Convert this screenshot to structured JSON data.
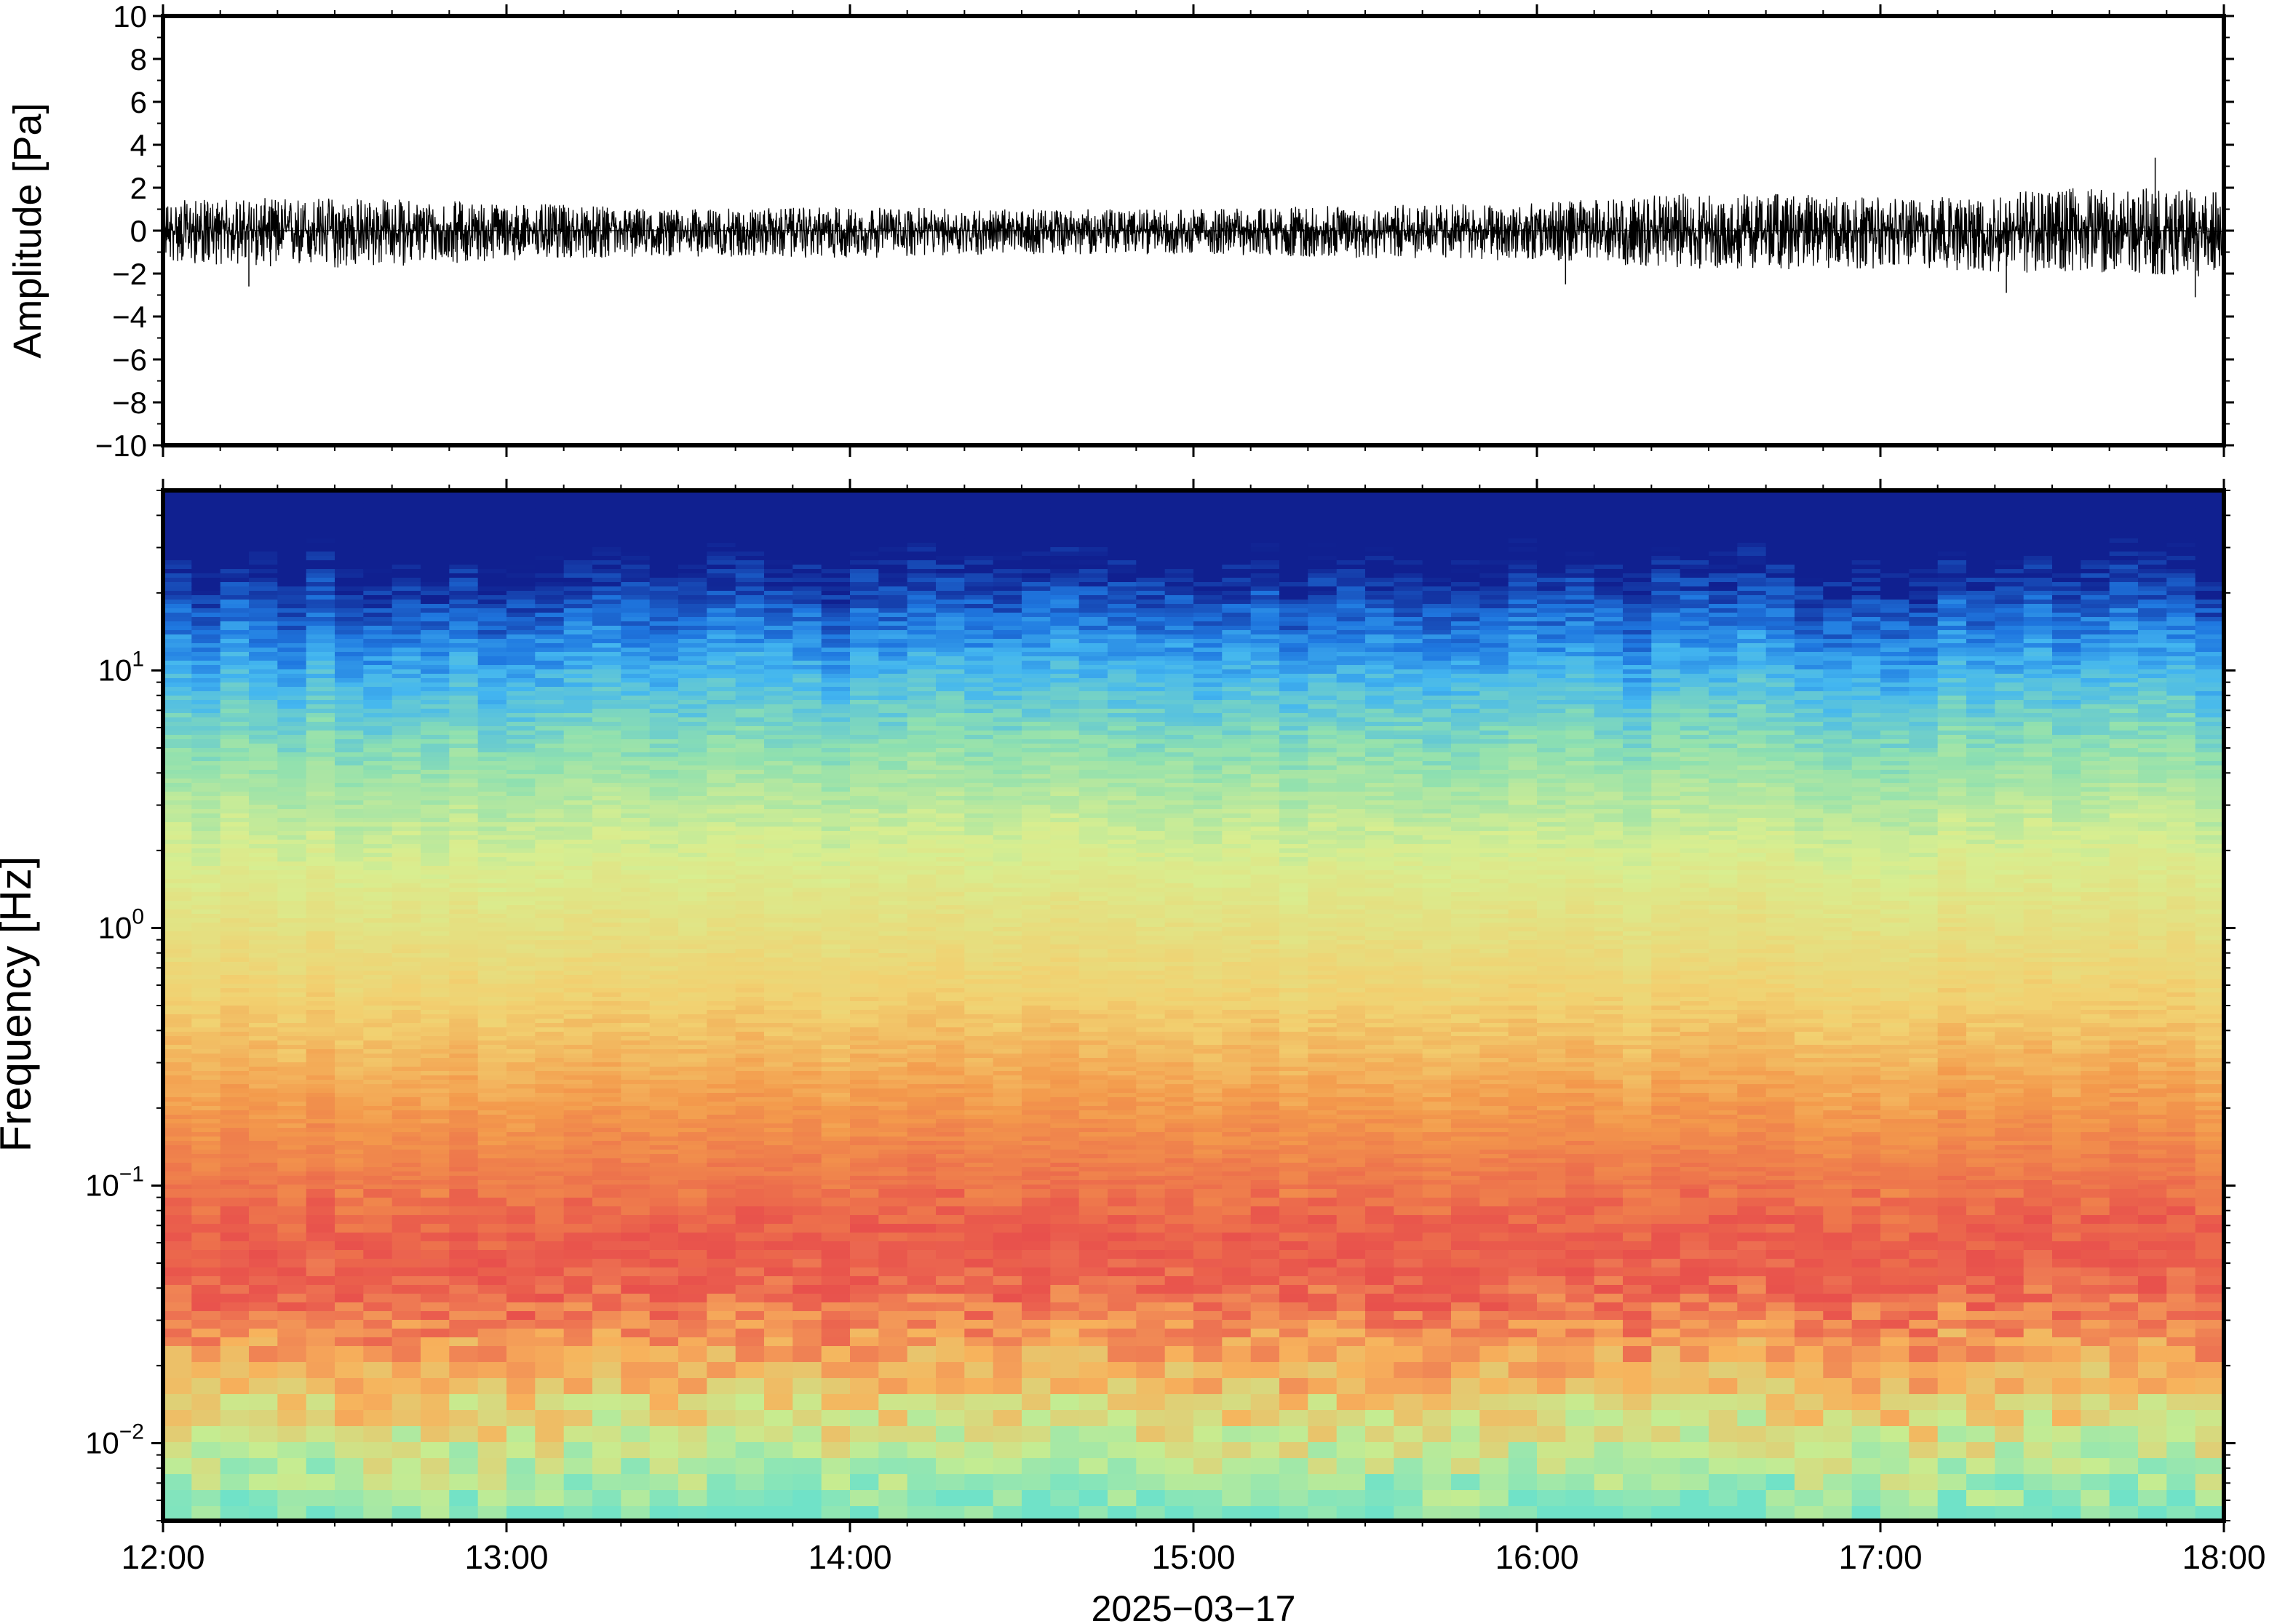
{
  "chart_data": [
    {
      "type": "line",
      "title": "",
      "xlabel": "",
      "ylabel": "Amplitude [Pa]",
      "xlim": [
        "12:00",
        "18:00"
      ],
      "ylim": [
        -10,
        10
      ],
      "yticks": [
        10,
        8,
        6,
        4,
        2,
        0,
        -2,
        -4,
        -6,
        -8,
        -10
      ],
      "ytick_labels": [
        "10",
        "8",
        "6",
        "4",
        "2",
        "0",
        "−2",
        "−4",
        "−6",
        "−8",
        "−10"
      ],
      "grid": false,
      "series": [
        {
          "color": "#000000",
          "description_values_envelope": {
            "time": [
              "12:00",
              "12:30",
              "13:00",
              "13:30",
              "14:00",
              "14:30",
              "15:00",
              "15:30",
              "16:00",
              "16:30",
              "17:00",
              "17:30",
              "18:00"
            ],
            "upper": [
              1.4,
              1.6,
              1.3,
              1.0,
              1.1,
              1.0,
              1.0,
              1.2,
              1.3,
              1.8,
              1.6,
              2.0,
              2.0
            ],
            "lower": [
              -1.5,
              -1.8,
              -1.4,
              -1.2,
              -1.3,
              -1.1,
              -1.1,
              -1.3,
              -1.4,
              -1.8,
              -1.8,
              -2.0,
              -2.2
            ]
          },
          "spikes": [
            {
              "time": "17:48",
              "value": 3.4
            },
            {
              "time": "17:55",
              "value": -3.1
            },
            {
              "time": "17:22",
              "value": -2.9
            },
            {
              "time": "12:15",
              "value": -2.6
            },
            {
              "time": "16:05",
              "value": -2.5
            }
          ]
        }
      ]
    },
    {
      "type": "heatmap",
      "title": "",
      "xlabel": "2025−03−17",
      "ylabel": "Frequency [Hz]",
      "xlim": [
        "12:00",
        "18:00"
      ],
      "ylim": [
        0.005,
        50
      ],
      "yscale": "log",
      "ytick_values": [
        10,
        1,
        0.1,
        0.01
      ],
      "ytick_labels": [
        {
          "base": "10",
          "exp": "1"
        },
        {
          "base": "10",
          "exp": "0"
        },
        {
          "base": "10",
          "exp": "−1"
        },
        {
          "base": "10",
          "exp": "−2"
        }
      ],
      "xticks": [
        "12:00",
        "13:00",
        "14:00",
        "15:00",
        "16:00",
        "17:00",
        "18:00"
      ],
      "colormap": "jet-like",
      "colors_by_band": {
        "f_above_25": "#102090",
        "f_15": "#1f78e0",
        "f_10": "#43b6f0",
        "f_5": "#8ee0b0",
        "f_2": "#d8ee90",
        "f_0.5": "#f2d070",
        "f_0.2": "#f39a4c",
        "f_0.05": "#e8504c",
        "f_0.02": "#f7b35c",
        "f_0.01": "#c7ec90",
        "f_0.006": "#70e2c8"
      }
    }
  ]
}
